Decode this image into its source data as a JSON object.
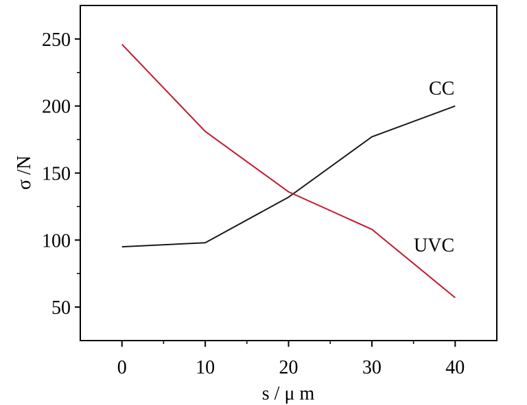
{
  "chart_data": {
    "type": "line",
    "x": [
      0,
      10,
      20,
      30,
      40
    ],
    "xlim": [
      -5,
      45
    ],
    "ylim": [
      25,
      275
    ],
    "xticks": [
      0,
      10,
      20,
      30,
      40
    ],
    "yticks": [
      50,
      100,
      150,
      200,
      250
    ],
    "xlabel": "s / μ m",
    "ylabel": "σ /N",
    "grid": false,
    "legend": "none",
    "series": [
      {
        "name": "CC",
        "color": "#1a1a1a",
        "values": [
          95,
          98,
          132,
          177,
          200
        ]
      },
      {
        "name": "UVC",
        "color": "#c0182e",
        "values": [
          246,
          181,
          136,
          108,
          57
        ]
      }
    ]
  }
}
